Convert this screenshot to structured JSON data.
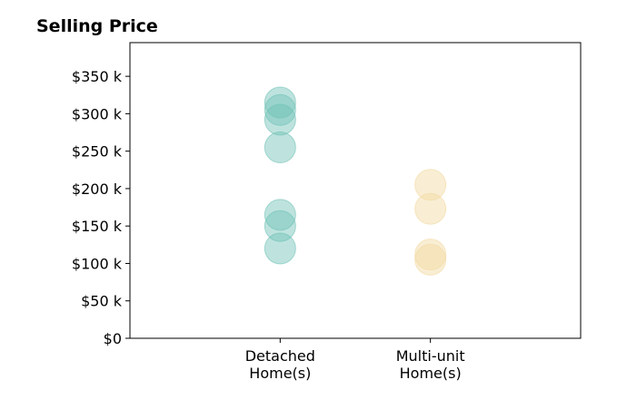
{
  "chart_data": {
    "type": "scatter",
    "title": "Selling Price",
    "xlabel": "",
    "ylabel": "",
    "categories": [
      "Detached\nHome(s)",
      "Multi-unit\nHome(s)"
    ],
    "ylim": [
      0,
      395000
    ],
    "yticks": [
      0,
      50000,
      100000,
      150000,
      200000,
      250000,
      300000,
      350000
    ],
    "ytick_labels": [
      "$0",
      "$50 k",
      "$100 k",
      "$150 k",
      "$200 k",
      "$250 k",
      "$300 k",
      "$350 k"
    ],
    "grid": false,
    "series": [
      {
        "category_index": 0,
        "color": "#6fc2b5",
        "values": [
          315000,
          305000,
          292000,
          255000,
          165000,
          150000,
          120000
        ]
      },
      {
        "category_index": 1,
        "color": "#f2d9a0",
        "values": [
          205000,
          173000,
          112000,
          105000
        ]
      }
    ]
  }
}
